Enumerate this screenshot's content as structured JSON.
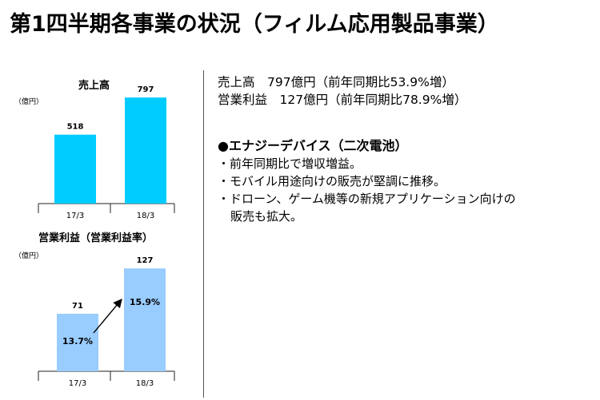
{
  "title": "第1四半期各事業の状況（フィルム応用製品事業）",
  "summary": {
    "sales_line": "売上高　797億円（前年同期比53.9%増）",
    "profit_line": "営業利益　127億円（前年同期比78.9%増）"
  },
  "section": {
    "heading": "●エナジーデバイス（二次電池）",
    "bullets": [
      "・前年同期比で増収増益。",
      "・モバイル用途向けの販売が堅調に推移。",
      "・ドローン、ゲーム機等の新規アプリケーション向けの",
      "販売も拡大。"
    ]
  },
  "colors": {
    "sales_bar": "#00ccff",
    "profit_bar": "#99ccff",
    "arrow": "#000000"
  },
  "chart_data": [
    {
      "type": "bar",
      "title": "売上高",
      "unit": "（億円）",
      "categories": [
        "17/3",
        "18/3"
      ],
      "values": [
        518,
        797
      ],
      "value_labels": [
        "518",
        "797"
      ],
      "ylim": [
        0,
        900
      ],
      "grid": false
    },
    {
      "type": "bar",
      "title": "営業利益（営業利益率）",
      "unit": "（億円）",
      "categories": [
        "17/3",
        "18/3"
      ],
      "values": [
        71,
        127
      ],
      "value_labels": [
        "71",
        "127"
      ],
      "margin_labels": [
        "13.7%",
        "15.9%"
      ],
      "ylim": [
        0,
        140
      ],
      "grid": false
    }
  ]
}
